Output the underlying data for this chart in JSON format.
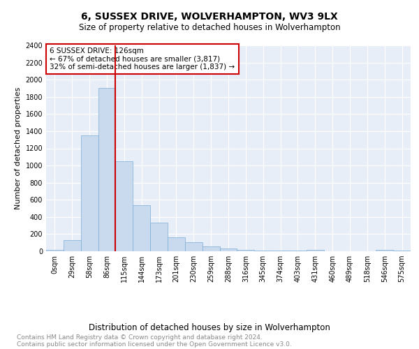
{
  "title": "6, SUSSEX DRIVE, WOLVERHAMPTON, WV3 9LX",
  "subtitle": "Size of property relative to detached houses in Wolverhampton",
  "xlabel": "Distribution of detached houses by size in Wolverhampton",
  "ylabel": "Number of detached properties",
  "bar_color": "#c9d9ee",
  "bar_edge_color": "#7aadd4",
  "categories": [
    "0sqm",
    "29sqm",
    "58sqm",
    "86sqm",
    "115sqm",
    "144sqm",
    "173sqm",
    "201sqm",
    "230sqm",
    "259sqm",
    "288sqm",
    "316sqm",
    "345sqm",
    "374sqm",
    "403sqm",
    "431sqm",
    "460sqm",
    "489sqm",
    "518sqm",
    "546sqm",
    "575sqm"
  ],
  "values": [
    20,
    130,
    1350,
    1900,
    1050,
    540,
    330,
    165,
    105,
    55,
    30,
    20,
    10,
    8,
    5,
    15,
    3,
    3,
    3,
    20,
    5
  ],
  "ylim": [
    0,
    2400
  ],
  "yticks": [
    0,
    200,
    400,
    600,
    800,
    1000,
    1200,
    1400,
    1600,
    1800,
    2000,
    2200,
    2400
  ],
  "red_line_x": 3.5,
  "annotation_title": "6 SUSSEX DRIVE: 126sqm",
  "annotation_line1": "← 67% of detached houses are smaller (3,817)",
  "annotation_line2": "32% of semi-detached houses are larger (1,837) →",
  "annotation_box_color": "#ffffff",
  "annotation_box_edge": "#cc0000",
  "red_line_color": "#cc0000",
  "background_color": "#ffffff",
  "plot_bg_color": "#e8eef7",
  "grid_color": "#ffffff",
  "footer_line1": "Contains HM Land Registry data © Crown copyright and database right 2024.",
  "footer_line2": "Contains public sector information licensed under the Open Government Licence v3.0.",
  "title_fontsize": 10,
  "subtitle_fontsize": 8.5,
  "xlabel_fontsize": 8.5,
  "ylabel_fontsize": 8,
  "tick_fontsize": 7,
  "footer_fontsize": 6.5,
  "annotation_fontsize": 7.5
}
